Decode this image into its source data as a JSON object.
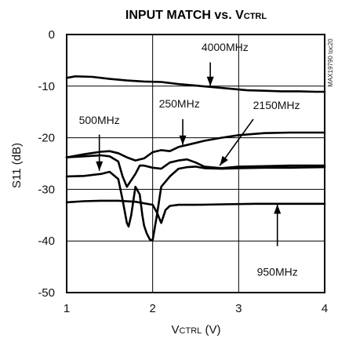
{
  "chart_data": {
    "type": "line",
    "title_main": "INPUT MATCH vs. V",
    "title_sub": "CTRL",
    "xlabel_main": "V",
    "xlabel_sub": "CTRL",
    "xlabel_unit": " (V)",
    "ylabel": "S11 (dB)",
    "xlim": [
      1,
      4
    ],
    "ylim": [
      -50,
      0
    ],
    "x_ticks": [
      "1",
      "2",
      "3",
      "4"
    ],
    "y_ticks": [
      "0",
      "-10",
      "-20",
      "-30",
      "-40",
      "-50"
    ],
    "grid": true,
    "side_label": "MAX19790 toc20",
    "series": [
      {
        "name": "4000MHz",
        "x": [
          1.0,
          1.1,
          1.3,
          1.5,
          1.7,
          1.9,
          2.1,
          2.3,
          2.5,
          2.7,
          2.9,
          3.1,
          3.3,
          3.5,
          3.7,
          3.9,
          4.0
        ],
        "y": [
          -8.4,
          -8.1,
          -8.2,
          -8.6,
          -8.9,
          -9.1,
          -9.2,
          -9.6,
          -9.9,
          -10.2,
          -10.5,
          -10.8,
          -10.9,
          -11.0,
          -11.0,
          -11.1,
          -11.1
        ]
      },
      {
        "name": "250MHz",
        "x": [
          1.0,
          1.2,
          1.4,
          1.5,
          1.6,
          1.7,
          1.8,
          1.9,
          2.0,
          2.1,
          2.2,
          2.3,
          2.4,
          2.5,
          2.6,
          2.8,
          3.0,
          3.3,
          3.6,
          4.0
        ],
        "y": [
          -23.8,
          -23.2,
          -22.7,
          -22.6,
          -23.0,
          -23.8,
          -24.4,
          -24.0,
          -22.8,
          -22.4,
          -22.6,
          -21.8,
          -21.4,
          -21.0,
          -20.6,
          -20.0,
          -19.5,
          -19.1,
          -19.0,
          -19.0
        ]
      },
      {
        "name": "2150MHz",
        "x": [
          1.0,
          1.2,
          1.4,
          1.5,
          1.6,
          1.65,
          1.7,
          1.8,
          1.85,
          1.9,
          2.0,
          2.1,
          2.2,
          2.3,
          2.4,
          2.5,
          2.6,
          2.8,
          3.0,
          3.3,
          3.6,
          4.0
        ],
        "y": [
          -23.8,
          -23.6,
          -23.4,
          -23.6,
          -24.6,
          -27.5,
          -29.5,
          -27.0,
          -25.4,
          -25.4,
          -25.8,
          -26.0,
          -24.8,
          -24.4,
          -24.2,
          -24.8,
          -25.6,
          -25.9,
          -25.6,
          -25.5,
          -25.4,
          -25.4
        ]
      },
      {
        "name": "500MHz",
        "x": [
          1.0,
          1.2,
          1.4,
          1.5,
          1.6,
          1.65,
          1.7,
          1.72,
          1.75,
          1.8,
          1.85,
          1.88,
          1.9,
          1.93,
          1.97,
          2.0,
          2.05,
          2.1,
          2.2,
          2.3,
          2.4,
          2.5,
          2.6,
          2.8,
          3.0,
          3.3,
          3.6,
          4.0
        ],
        "y": [
          -27.5,
          -27.4,
          -27.0,
          -26.6,
          -28.0,
          -32.0,
          -36.5,
          -37.2,
          -35.0,
          -29.5,
          -31.0,
          -35.0,
          -37.0,
          -38.5,
          -39.8,
          -39.8,
          -35.0,
          -29.5,
          -27.5,
          -26.0,
          -25.7,
          -25.6,
          -25.9,
          -26.0,
          -25.9,
          -25.8,
          -25.8,
          -25.7
        ]
      },
      {
        "name": "950MHz",
        "x": [
          1.0,
          1.2,
          1.4,
          1.6,
          1.8,
          2.0,
          2.05,
          2.1,
          2.15,
          2.2,
          2.3,
          2.5,
          2.8,
          3.2,
          3.6,
          4.0
        ],
        "y": [
          -32.5,
          -32.3,
          -32.2,
          -32.2,
          -32.4,
          -33.0,
          -34.5,
          -36.5,
          -34.0,
          -33.2,
          -33.0,
          -33.0,
          -32.9,
          -32.8,
          -32.8,
          -32.8
        ]
      }
    ],
    "annotations": [
      {
        "text": "4000MHz",
        "tx": 2.84,
        "ty": -2.4,
        "arrow_from": [
          2.67,
          -5.4
        ],
        "arrow_to": [
          2.67,
          -10.0
        ]
      },
      {
        "text": "250MHz",
        "tx": 2.31,
        "ty": -13.4,
        "arrow_from": [
          2.35,
          -16.4
        ],
        "arrow_to": [
          2.35,
          -21.4
        ]
      },
      {
        "text": "2150MHz",
        "tx": 3.44,
        "ty": -13.7,
        "arrow_from": [
          3.17,
          -16.4
        ],
        "arrow_to": [
          2.78,
          -25.4
        ]
      },
      {
        "text": "500MHz",
        "tx": 1.38,
        "ty": -16.6,
        "arrow_from": [
          1.38,
          -19.4
        ],
        "arrow_to": [
          1.38,
          -26.4
        ]
      },
      {
        "text": "950MHz",
        "tx": 3.45,
        "ty": -46.0,
        "arrow_from": [
          3.45,
          -41.0
        ],
        "arrow_to": [
          3.45,
          -32.9
        ]
      }
    ]
  }
}
